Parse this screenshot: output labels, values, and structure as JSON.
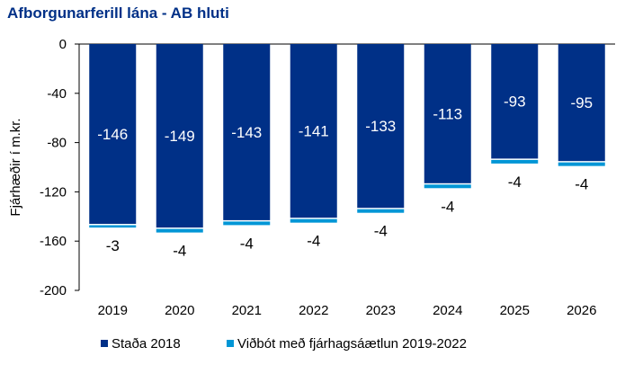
{
  "chart_data": {
    "type": "bar",
    "stacked": true,
    "title": "Afborgunarferill lána - AB hluti",
    "xlabel": "",
    "ylabel": "Fjárhæðir í m.kr.",
    "ylim": [
      -200,
      0
    ],
    "yticks": [
      0,
      -40,
      -80,
      -120,
      -160,
      -200
    ],
    "categories": [
      "2019",
      "2020",
      "2021",
      "2022",
      "2023",
      "2024",
      "2025",
      "2026"
    ],
    "series": [
      {
        "name": "Staða 2018",
        "color": "#003087",
        "values": [
          -146,
          -149,
          -143,
          -141,
          -133,
          -113,
          -93,
          -95
        ]
      },
      {
        "name": "Viðbót með fjárhagsáætlun 2019-2022",
        "color": "#0096d6",
        "values": [
          -3,
          -4,
          -4,
          -4,
          -4,
          -4,
          -4,
          -4
        ]
      }
    ],
    "legend": "bottom"
  }
}
